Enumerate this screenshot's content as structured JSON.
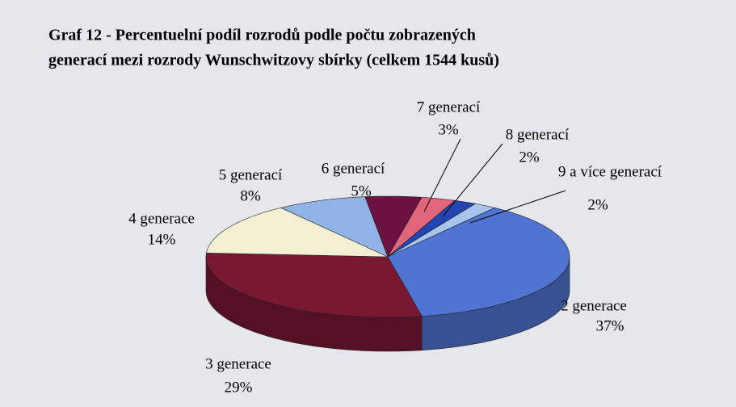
{
  "chart_data": {
    "type": "pie",
    "title": [
      "Graf 12 - Percentuelní podíl rozrodů podle počtu zobrazených",
      "generací mezi rozrody Wunschwitzovy sbírky (celkem 1544 kusů)"
    ],
    "categories": [
      "2 generace",
      "3 generace",
      "4 generace",
      "5 generací",
      "6 generací",
      "7 generací",
      "8 generací",
      "9 a více generací"
    ],
    "values": [
      37,
      29,
      14,
      8,
      5,
      3,
      2,
      2
    ],
    "value_labels": [
      "37%",
      "29%",
      "14%",
      "8%",
      "5%",
      "3%",
      "2%",
      "2%"
    ],
    "colors": [
      "#4f74d2",
      "#7a1832",
      "#f3efd2",
      "#91b2e4",
      "#6c1142",
      "#e2667a",
      "#2444b2",
      "#a6c4ec"
    ]
  }
}
